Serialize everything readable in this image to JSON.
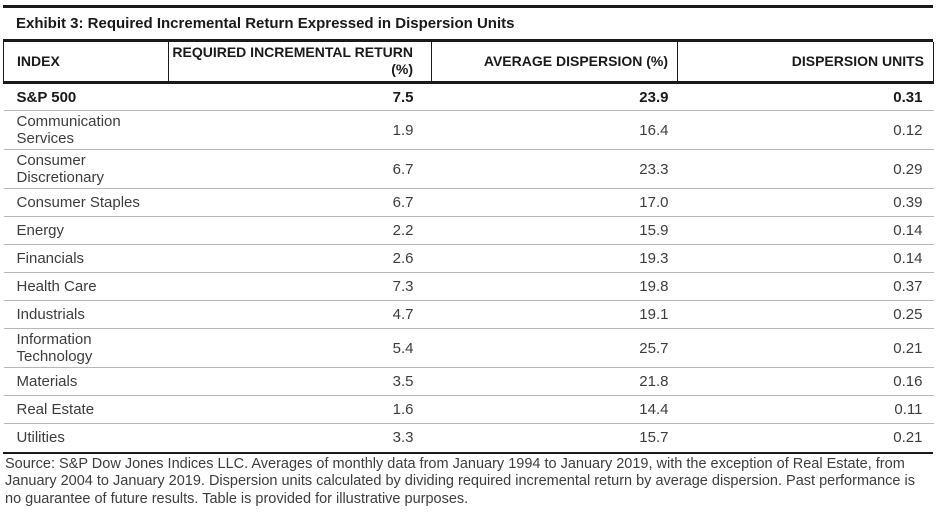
{
  "exhibit": {
    "title": "Exhibit 3: Required Incremental Return Expressed in Dispersion Units"
  },
  "table": {
    "columns": [
      "INDEX",
      "REQUIRED INCREMENTAL RETURN (%)",
      "AVERAGE DISPERSION (%)",
      "DISPERSION UNITS"
    ],
    "rows": [
      {
        "index": "S&P 500",
        "required_incremental_return_pct": "7.5",
        "average_dispersion_pct": "23.9",
        "dispersion_units": "0.31",
        "bold": true
      },
      {
        "index": "Communication Services",
        "required_incremental_return_pct": "1.9",
        "average_dispersion_pct": "16.4",
        "dispersion_units": "0.12",
        "bold": false
      },
      {
        "index": "Consumer Discretionary",
        "required_incremental_return_pct": "6.7",
        "average_dispersion_pct": "23.3",
        "dispersion_units": "0.29",
        "bold": false
      },
      {
        "index": "Consumer Staples",
        "required_incremental_return_pct": "6.7",
        "average_dispersion_pct": "17.0",
        "dispersion_units": "0.39",
        "bold": false
      },
      {
        "index": "Energy",
        "required_incremental_return_pct": "2.2",
        "average_dispersion_pct": "15.9",
        "dispersion_units": "0.14",
        "bold": false
      },
      {
        "index": "Financials",
        "required_incremental_return_pct": "2.6",
        "average_dispersion_pct": "19.3",
        "dispersion_units": "0.14",
        "bold": false
      },
      {
        "index": "Health Care",
        "required_incremental_return_pct": "7.3",
        "average_dispersion_pct": "19.8",
        "dispersion_units": "0.37",
        "bold": false
      },
      {
        "index": "Industrials",
        "required_incremental_return_pct": "4.7",
        "average_dispersion_pct": "19.1",
        "dispersion_units": "0.25",
        "bold": false
      },
      {
        "index": "Information Technology",
        "required_incremental_return_pct": "5.4",
        "average_dispersion_pct": "25.7",
        "dispersion_units": "0.21",
        "bold": false
      },
      {
        "index": "Materials",
        "required_incremental_return_pct": "3.5",
        "average_dispersion_pct": "21.8",
        "dispersion_units": "0.16",
        "bold": false
      },
      {
        "index": "Real Estate",
        "required_incremental_return_pct": "1.6",
        "average_dispersion_pct": "14.4",
        "dispersion_units": "0.11",
        "bold": false
      },
      {
        "index": "Utilities",
        "required_incremental_return_pct": "3.3",
        "average_dispersion_pct": "15.7",
        "dispersion_units": "0.21",
        "bold": false
      }
    ]
  },
  "footer": {
    "source_text": "Source: S&P Dow Jones Indices LLC. Averages of monthly data from January 1994 to January 2019, with the exception of Real Estate, from January 2004 to January 2019. Dispersion units calculated by dividing required incremental return by average dispersion. Past performance is no guarantee of future results. Table is provided for illustrative purposes."
  },
  "colors": {
    "rule_black": "#1a1a1a",
    "row_separator_gray": "#b7b7b7",
    "body_text": "#3d3d3d",
    "heading_text": "#000000",
    "background": "#ffffff"
  }
}
